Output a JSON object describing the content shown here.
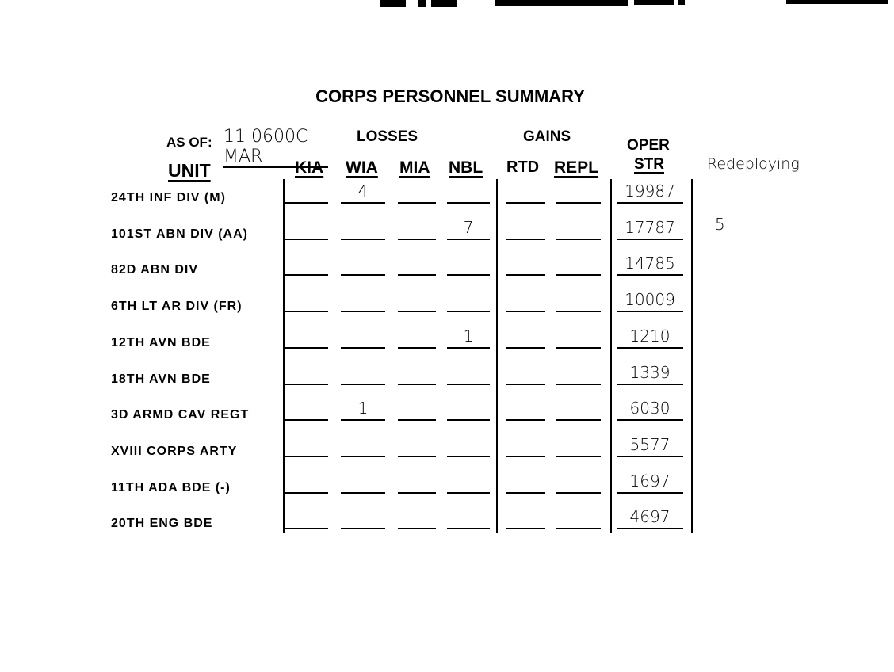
{
  "title": "CORPS PERSONNEL SUMMARY",
  "as_of_label": "AS OF:",
  "as_of_value": "11 0600C MAR",
  "group_losses": "LOSSES",
  "group_gains": "GAINS",
  "columns": {
    "unit": "UNIT",
    "kia": "KIA",
    "wia": "WIA",
    "mia": "MIA",
    "nbl": "NBL",
    "rtd": "RTD",
    "repl": "REPL",
    "oper1": "OPER",
    "oper2": "STR"
  },
  "note_header": "Redeploying",
  "rows": [
    {
      "unit": "24TH INF DIV (M)",
      "kia": "",
      "wia": "4",
      "mia": "",
      "nbl": "",
      "rtd": "",
      "repl": "",
      "oper": "19987",
      "note": ""
    },
    {
      "unit": "101ST ABN DIV (AA)",
      "kia": "",
      "wia": "",
      "mia": "",
      "nbl": "7",
      "rtd": "",
      "repl": "",
      "oper": "17787",
      "note": "5"
    },
    {
      "unit": "82D ABN DIV",
      "kia": "",
      "wia": "",
      "mia": "",
      "nbl": "",
      "rtd": "",
      "repl": "",
      "oper": "14785",
      "note": ""
    },
    {
      "unit": "6TH LT AR DIV (FR)",
      "kia": "",
      "wia": "",
      "mia": "",
      "nbl": "",
      "rtd": "",
      "repl": "",
      "oper": "10009",
      "note": ""
    },
    {
      "unit": "12TH AVN BDE",
      "kia": "",
      "wia": "",
      "mia": "",
      "nbl": "1",
      "rtd": "",
      "repl": "",
      "oper": "1210",
      "note": ""
    },
    {
      "unit": "18TH AVN BDE",
      "kia": "",
      "wia": "",
      "mia": "",
      "nbl": "",
      "rtd": "",
      "repl": "",
      "oper": "1339",
      "note": ""
    },
    {
      "unit": "3D ARMD CAV REGT",
      "kia": "",
      "wia": "1",
      "mia": "",
      "nbl": "",
      "rtd": "",
      "repl": "",
      "oper": "6030",
      "note": ""
    },
    {
      "unit": "XVIII CORPS ARTY",
      "kia": "",
      "wia": "",
      "mia": "",
      "nbl": "",
      "rtd": "",
      "repl": "",
      "oper": "5577",
      "note": ""
    },
    {
      "unit": "11TH ADA BDE (-)",
      "kia": "",
      "wia": "",
      "mia": "",
      "nbl": "",
      "rtd": "",
      "repl": "",
      "oper": "1697",
      "note": ""
    },
    {
      "unit": "20TH ENG BDE",
      "kia": "",
      "wia": "",
      "mia": "",
      "nbl": "",
      "rtd": "",
      "repl": "",
      "oper": "4697",
      "note": ""
    }
  ]
}
